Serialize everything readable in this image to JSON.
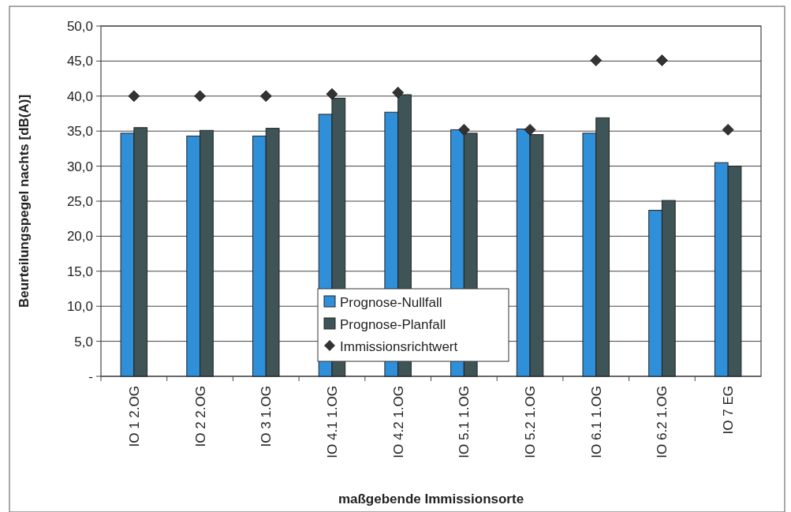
{
  "chart_data": {
    "type": "bar",
    "xlabel": "maßgebende Immissionsorte",
    "ylabel": "Beurteilungspegel  nachts  [dB(A)]",
    "categories": [
      "IO 1 2.OG",
      "IO 2 2.OG",
      "IO 3 1.OG",
      "IO 4.1 1.OG",
      "IO 4.2 1.OG",
      "IO 5.1 1.OG",
      "IO 5.2 1.OG",
      "IO 6.1 1.OG",
      "IO 6.2 1.OG",
      "IO 7 EG"
    ],
    "series": [
      {
        "name": "Prognose-Nullfall",
        "color": "#2f8fd8",
        "values": [
          34.7,
          34.3,
          34.3,
          37.4,
          37.7,
          35.2,
          35.3,
          34.7,
          23.7,
          30.5
        ]
      },
      {
        "name": "Prognose-Planfall",
        "color": "#3f5456",
        "values": [
          35.5,
          35.1,
          35.4,
          39.7,
          40.2,
          34.7,
          34.5,
          36.9,
          25.1,
          30.0
        ]
      },
      {
        "name": "Immissionsrichtwert",
        "type": "scatter",
        "color": "#333333",
        "marker": "diamond",
        "values": [
          40,
          40,
          40,
          40.3,
          40.5,
          35.2,
          35.2,
          45.1,
          45.1,
          35.2
        ]
      }
    ],
    "ylim": [
      0,
      50
    ],
    "yticks": [
      {
        "value": 0,
        "label": "-"
      },
      {
        "value": 5,
        "label": "5,0"
      },
      {
        "value": 10,
        "label": "10,0"
      },
      {
        "value": 15,
        "label": "15,0"
      },
      {
        "value": 20,
        "label": "20,0"
      },
      {
        "value": 25,
        "label": "25,0"
      },
      {
        "value": 30,
        "label": "30,0"
      },
      {
        "value": 35,
        "label": "35,0"
      },
      {
        "value": 40,
        "label": "40,0"
      },
      {
        "value": 45,
        "label": "45,0"
      },
      {
        "value": 50,
        "label": "50,0"
      }
    ],
    "grid": "y",
    "legend": "bottom"
  }
}
